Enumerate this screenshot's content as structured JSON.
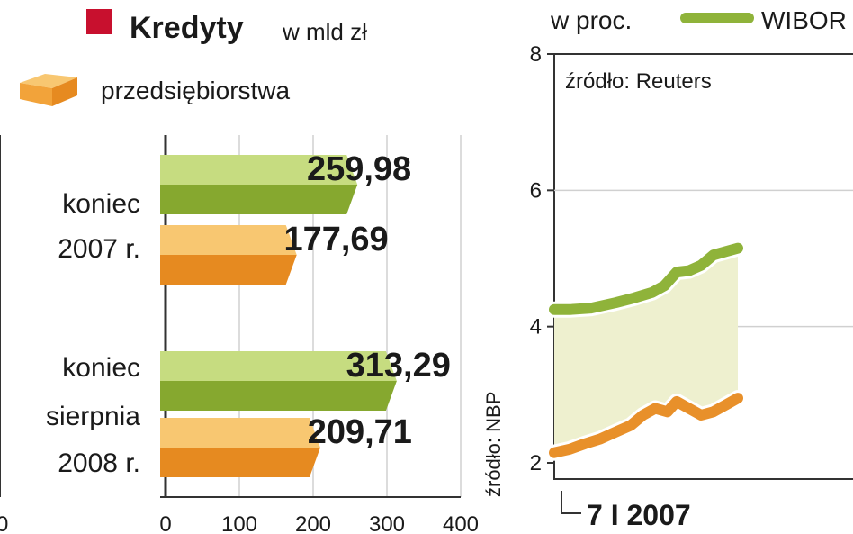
{
  "colors": {
    "credit_red": "#c8102e",
    "green_bar": "#9fbe3f",
    "green_bar_dark": "#86a82f",
    "green_bar_light": "#c6dc80",
    "orange_bar": "#f2a33a",
    "orange_bar_dark": "#e68a20",
    "orange_bar_light": "#f8c771",
    "wibor_green": "#8fb33a",
    "orange_line": "#e8902a",
    "area_fill": "#eef0cf",
    "grid": "#d0d0d0",
    "axis": "#333333"
  },
  "legend": {
    "title": "Kredyty",
    "unit": "w mld zł",
    "item2_label": "przedsiębiorstwa",
    "red_icon": "red-square-icon",
    "box_icon": "orange-box-icon"
  },
  "right_header": {
    "unit": "w proc.",
    "series1_label": "WIBOR",
    "source": "źródło: Reuters",
    "start_date": "7 I 2007"
  },
  "left_footer": {
    "left_edge_tick": "0",
    "source": "źródło: NBP"
  },
  "chart_data": [
    {
      "type": "bar",
      "orientation": "horizontal",
      "title": "Kredyty",
      "unit": "w mld zł",
      "categories": [
        {
          "lines": [
            "koniec",
            "2007 r."
          ]
        },
        {
          "lines": [
            "koniec",
            "sierpnia",
            "2008 r."
          ]
        }
      ],
      "series": [
        {
          "values": [
            259.98,
            313.29
          ],
          "labels": [
            "259,98",
            "313,29"
          ],
          "color": "green"
        },
        {
          "name": "przedsiębiorstwa",
          "values": [
            177.69,
            209.71
          ],
          "labels": [
            "177,69",
            "209,71"
          ],
          "color": "orange"
        }
      ],
      "xlim": [
        0,
        400
      ],
      "xticks": [
        0,
        100,
        200,
        300,
        400
      ],
      "xtick_labels": [
        "0",
        "100",
        "200",
        "300",
        "400"
      ],
      "grid": true
    },
    {
      "type": "line",
      "unit": "w proc.",
      "ylim": [
        2,
        8
      ],
      "yticks": [
        2,
        4,
        6,
        8
      ],
      "ytick_labels": [
        "2",
        "4",
        "6",
        "8"
      ],
      "series": [
        {
          "name": "WIBOR",
          "color": "green",
          "points": [
            [
              0,
              4.25
            ],
            [
              0.05,
              4.25
            ],
            [
              0.12,
              4.27
            ],
            [
              0.2,
              4.35
            ],
            [
              0.26,
              4.42
            ],
            [
              0.32,
              4.5
            ],
            [
              0.36,
              4.6
            ],
            [
              0.4,
              4.8
            ],
            [
              0.44,
              4.82
            ],
            [
              0.48,
              4.9
            ],
            [
              0.52,
              5.05
            ],
            [
              0.56,
              5.1
            ],
            [
              0.6,
              5.15
            ]
          ]
        },
        {
          "color": "orange",
          "points": [
            [
              0,
              2.15
            ],
            [
              0.05,
              2.2
            ],
            [
              0.1,
              2.28
            ],
            [
              0.15,
              2.35
            ],
            [
              0.2,
              2.45
            ],
            [
              0.25,
              2.55
            ],
            [
              0.29,
              2.7
            ],
            [
              0.33,
              2.8
            ],
            [
              0.37,
              2.75
            ],
            [
              0.4,
              2.9
            ],
            [
              0.44,
              2.8
            ],
            [
              0.48,
              2.7
            ],
            [
              0.52,
              2.75
            ],
            [
              0.56,
              2.85
            ],
            [
              0.6,
              2.95
            ]
          ]
        }
      ]
    }
  ]
}
